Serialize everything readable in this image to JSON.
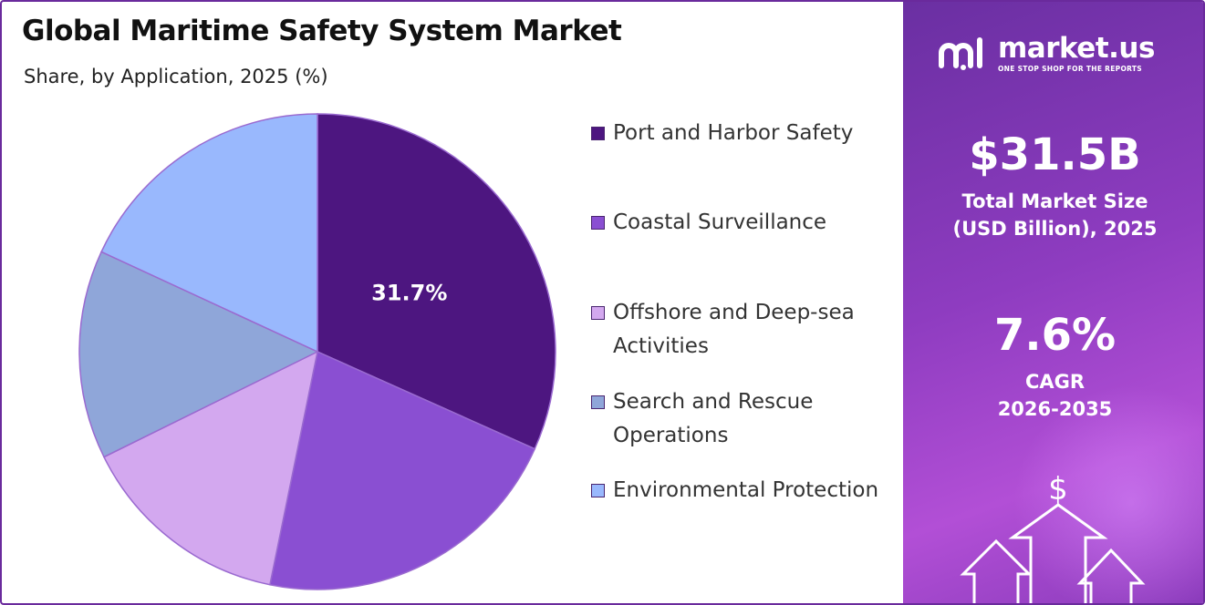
{
  "header": {
    "title": "Global Maritime Safety System Market",
    "subtitle": "Share, by Application, 2025 (%)"
  },
  "chart_data": {
    "type": "pie",
    "title": "Global Maritime Safety System Market",
    "subtitle": "Share, by Application, 2025 (%)",
    "start_angle_deg": 0,
    "direction": "clockwise",
    "slices": [
      {
        "label": "Port and Harbor Safety",
        "value": 31.7,
        "color": "#4d1680",
        "data_label": "31.7%"
      },
      {
        "label": "Coastal Surveillance",
        "value": 21.5,
        "color": "#8a4fd2",
        "data_label": ""
      },
      {
        "label": "Offshore and Deep-sea Activities",
        "value": 14.5,
        "color": "#d3a8ef",
        "data_label": ""
      },
      {
        "label": "Search and Rescue Operations",
        "value": 14.2,
        "color": "#8fa6d9",
        "data_label": ""
      },
      {
        "label": "Environmental Protection",
        "value": 18.1,
        "color": "#99b8fd",
        "data_label": ""
      }
    ],
    "legend_position": "right"
  },
  "legend": {
    "items": [
      {
        "label": "Port and Harbor Safety",
        "color": "#4d1680"
      },
      {
        "label": "Coastal Surveillance",
        "color": "#8a4fd2"
      },
      {
        "label": "Offshore and Deep-sea Activities",
        "color": "#d3a8ef"
      },
      {
        "label": "Search and Rescue Operations",
        "color": "#8fa6d9"
      },
      {
        "label": "Environmental Protection",
        "color": "#99b8fd"
      }
    ]
  },
  "panel": {
    "brand": "market.us",
    "tagline": "ONE STOP SHOP FOR THE REPORTS",
    "market_size_value": "$31.5B",
    "market_size_label_1": "Total Market Size",
    "market_size_label_2": "(USD Billion), 2025",
    "cagr_value": "7.6%",
    "cagr_label_1": "CAGR",
    "cagr_label_2": "2026-2035",
    "icon": "dollar-growth-arrows-icon"
  },
  "colors": {
    "border": "#6a2a9c",
    "panel_start": "#6a2fa2",
    "panel_end": "#b24fd6",
    "slice_stroke": "#9a6ad0"
  }
}
